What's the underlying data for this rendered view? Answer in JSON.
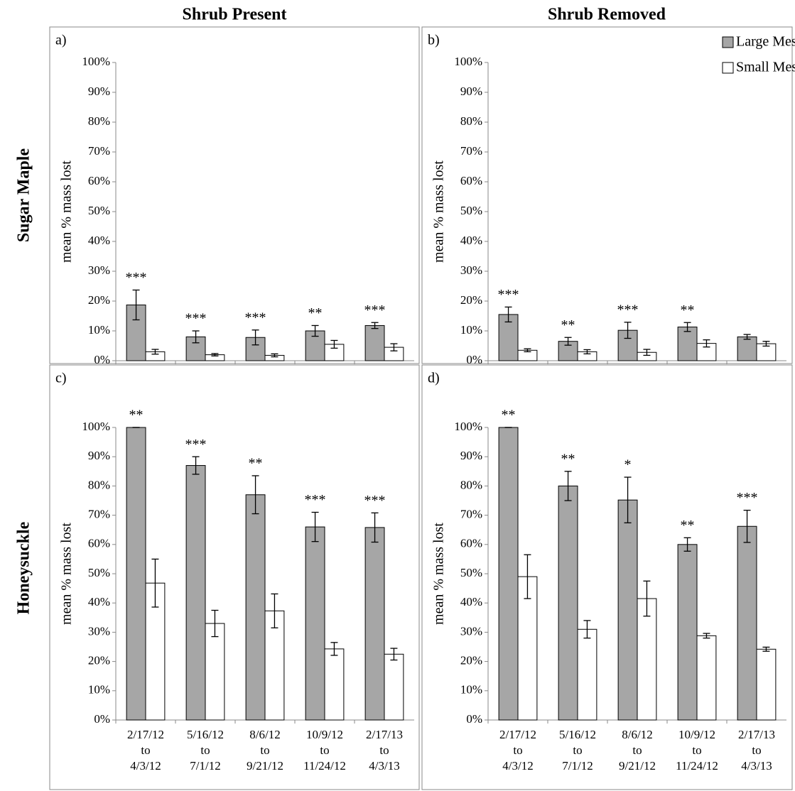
{
  "column_titles": [
    "Shrub Present",
    "Shrub Removed"
  ],
  "row_titles": [
    "Sugar Maple",
    "Honeysuckle"
  ],
  "chart_data": [
    {
      "type": "bar",
      "panel_label": "a)",
      "y_label": "mean % mass lost",
      "categories": [
        null,
        null,
        null,
        null,
        null
      ],
      "series": [
        {
          "color": "#a6a6a6",
          "values": [
            18.7,
            8.0,
            7.8,
            10.0,
            11.8
          ],
          "errors": [
            5.0,
            2.0,
            2.5,
            1.8,
            1.0
          ]
        },
        {
          "color": "#ffffff",
          "values": [
            3.0,
            2.0,
            1.8,
            5.5,
            4.5
          ],
          "errors": [
            0.8,
            0.4,
            0.5,
            1.3,
            1.2
          ]
        }
      ],
      "annotations": [
        "***",
        "***",
        "***",
        "**",
        "***"
      ],
      "ylim": [
        0,
        100
      ],
      "yticks": [
        {
          "value": 0,
          "label": "0%"
        },
        {
          "value": 10,
          "label": "10%"
        },
        {
          "value": 20,
          "label": "20%"
        },
        {
          "value": 30,
          "label": "30%"
        },
        {
          "value": 40,
          "label": "40%"
        },
        {
          "value": 50,
          "label": "50%"
        },
        {
          "value": 60,
          "label": "60%"
        },
        {
          "value": 70,
          "label": "70%"
        },
        {
          "value": 80,
          "label": "80%"
        },
        {
          "value": 90,
          "label": "90%"
        },
        {
          "value": 100,
          "label": "100%"
        }
      ]
    },
    {
      "type": "bar",
      "panel_label": "b)",
      "y_label": "mean % mass lost",
      "categories": [
        null,
        null,
        null,
        null,
        null
      ],
      "series": [
        {
          "name": "Large Mesh",
          "color": "#a6a6a6",
          "values": [
            15.5,
            6.5,
            10.2,
            11.3,
            8.0
          ],
          "errors": [
            2.5,
            1.3,
            2.7,
            1.5,
            0.8
          ]
        },
        {
          "name": "Small Mesh",
          "color": "#ffffff",
          "values": [
            3.5,
            3.0,
            2.8,
            5.8,
            5.7
          ],
          "errors": [
            0.5,
            0.7,
            1.0,
            1.2,
            0.8
          ]
        }
      ],
      "annotations": [
        "***",
        "**",
        "***",
        "**",
        null
      ],
      "legend": "upper right",
      "ylim": [
        0,
        100
      ],
      "yticks": [
        {
          "value": 0,
          "label": "0%"
        },
        {
          "value": 10,
          "label": "10%"
        },
        {
          "value": 20,
          "label": "20%"
        },
        {
          "value": 30,
          "label": "30%"
        },
        {
          "value": 40,
          "label": "40%"
        },
        {
          "value": 50,
          "label": "50%"
        },
        {
          "value": 60,
          "label": "60%"
        },
        {
          "value": 70,
          "label": "70%"
        },
        {
          "value": 80,
          "label": "80%"
        },
        {
          "value": 90,
          "label": "90%"
        },
        {
          "value": 100,
          "label": "100%"
        }
      ]
    },
    {
      "type": "bar",
      "panel_label": "c)",
      "y_label": "mean % mass lost",
      "categories": [
        [
          "2/17/12",
          "to",
          "4/3/12"
        ],
        [
          "5/16/12",
          "to",
          "7/1/12"
        ],
        [
          "8/6/12",
          "to",
          "9/21/12"
        ],
        [
          "10/9/12",
          "to",
          "11/24/12"
        ],
        [
          "2/17/13",
          "to",
          "4/3/13"
        ]
      ],
      "series": [
        {
          "color": "#a6a6a6",
          "values": [
            100,
            87,
            77,
            66,
            65.8
          ],
          "errors": [
            0,
            3,
            6.5,
            5,
            5
          ]
        },
        {
          "color": "#ffffff",
          "values": [
            46.8,
            33,
            37.3,
            24.3,
            22.5
          ],
          "errors": [
            8.2,
            4.5,
            5.8,
            2.2,
            2
          ]
        }
      ],
      "annotations": [
        "**",
        "***",
        "**",
        "***",
        "***"
      ],
      "ylim": [
        0,
        100
      ],
      "yticks": [
        {
          "value": 0,
          "label": "0%"
        },
        {
          "value": 10,
          "label": "10%"
        },
        {
          "value": 20,
          "label": "20%"
        },
        {
          "value": 30,
          "label": "30%"
        },
        {
          "value": 40,
          "label": "40%"
        },
        {
          "value": 50,
          "label": "50%"
        },
        {
          "value": 60,
          "label": "60%"
        },
        {
          "value": 70,
          "label": "70%"
        },
        {
          "value": 80,
          "label": "80%"
        },
        {
          "value": 90,
          "label": "90%"
        },
        {
          "value": 100,
          "label": "100%"
        }
      ]
    },
    {
      "type": "bar",
      "panel_label": "d)",
      "y_label": "mean % mass lost",
      "categories": [
        [
          "2/17/12",
          "to",
          "4/3/12"
        ],
        [
          "5/16/12",
          "to",
          "7/1/12"
        ],
        [
          "8/6/12",
          "to",
          "9/21/12"
        ],
        [
          "10/9/12",
          "to",
          "11/24/12"
        ],
        [
          "2/17/13",
          "to",
          "4/3/13"
        ]
      ],
      "series": [
        {
          "color": "#a6a6a6",
          "values": [
            100,
            80,
            75.2,
            60,
            66.2
          ],
          "errors": [
            0,
            5,
            7.8,
            2.3,
            5.5
          ]
        },
        {
          "color": "#ffffff",
          "values": [
            49,
            31,
            41.5,
            28.8,
            24.2
          ],
          "errors": [
            7.5,
            3,
            6,
            0.8,
            0.7
          ]
        }
      ],
      "annotations": [
        "**",
        "**",
        "*",
        "**",
        "***"
      ],
      "ylim": [
        0,
        100
      ],
      "yticks": [
        {
          "value": 0,
          "label": "0%"
        },
        {
          "value": 10,
          "label": "10%"
        },
        {
          "value": 20,
          "label": "20%"
        },
        {
          "value": 30,
          "label": "30%"
        },
        {
          "value": 40,
          "label": "40%"
        },
        {
          "value": 50,
          "label": "50%"
        },
        {
          "value": 60,
          "label": "60%"
        },
        {
          "value": 70,
          "label": "70%"
        },
        {
          "value": 80,
          "label": "80%"
        },
        {
          "value": 90,
          "label": "90%"
        },
        {
          "value": 100,
          "label": "100%"
        }
      ]
    }
  ]
}
